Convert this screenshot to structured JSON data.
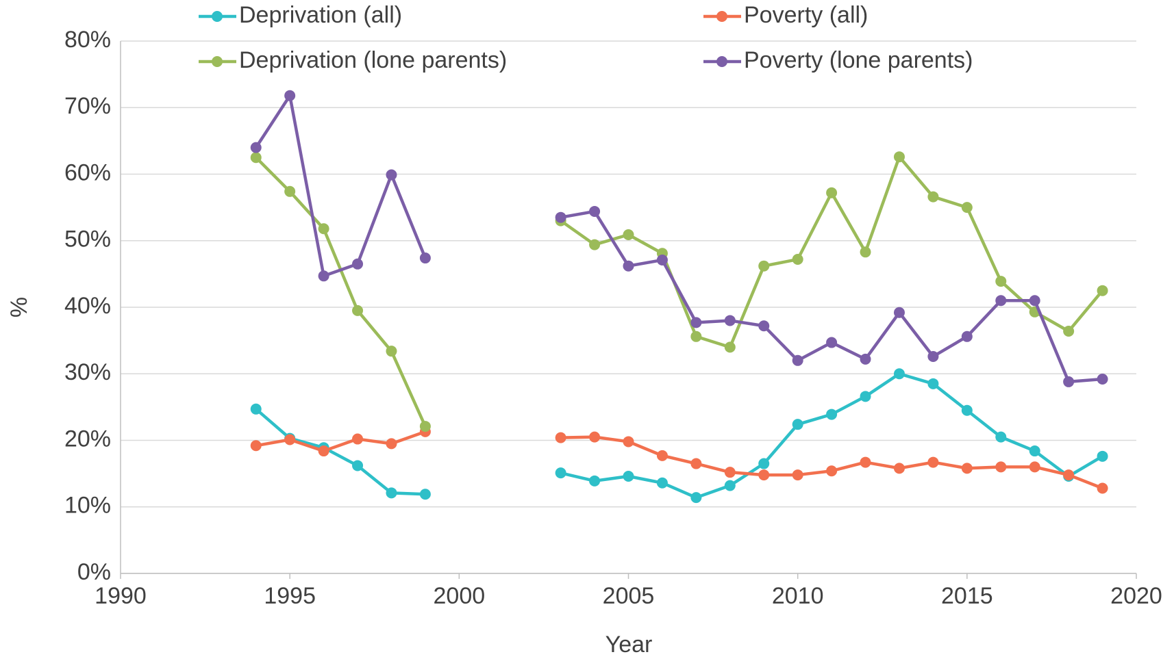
{
  "chart_data": {
    "type": "line",
    "xlabel": "Year",
    "ylabel": "%",
    "x": [
      1994,
      1995,
      1996,
      1997,
      1998,
      1999,
      2000,
      2001,
      2002,
      2003,
      2004,
      2005,
      2006,
      2007,
      2008,
      2009,
      2010,
      2011,
      2012,
      2013,
      2014,
      2015,
      2016,
      2017,
      2018,
      2019
    ],
    "series": [
      {
        "name": "Deprivation (all)",
        "color": "#2ebfc8",
        "values": [
          24.7,
          20.3,
          18.9,
          16.2,
          12.1,
          11.9,
          null,
          null,
          null,
          15.1,
          13.9,
          14.6,
          13.6,
          11.4,
          13.2,
          16.5,
          22.4,
          23.9,
          26.6,
          30.0,
          28.5,
          24.5,
          20.5,
          18.4,
          14.6,
          17.6
        ]
      },
      {
        "name": "Poverty (all)",
        "color": "#f2704e",
        "values": [
          19.2,
          20.1,
          18.4,
          20.2,
          19.5,
          21.3,
          null,
          null,
          null,
          20.4,
          20.5,
          19.8,
          17.7,
          16.5,
          15.2,
          14.8,
          14.8,
          15.4,
          16.7,
          15.8,
          16.7,
          15.8,
          16.0,
          16.0,
          14.8,
          12.8
        ]
      },
      {
        "name": "Deprivation (lone parents)",
        "color": "#9bbb59",
        "values": [
          62.5,
          57.4,
          51.8,
          39.5,
          33.4,
          22.1,
          null,
          null,
          null,
          53.0,
          49.4,
          50.9,
          48.1,
          35.6,
          34.0,
          46.2,
          47.2,
          57.2,
          48.3,
          62.6,
          56.6,
          55.0,
          43.9,
          39.3,
          36.4,
          42.5
        ]
      },
      {
        "name": "Poverty (lone parents)",
        "color": "#7b5ea7",
        "values": [
          64.0,
          71.8,
          44.7,
          46.5,
          59.9,
          47.4,
          null,
          null,
          null,
          53.5,
          54.4,
          46.2,
          47.1,
          37.7,
          38.0,
          37.2,
          32.0,
          34.7,
          32.2,
          39.2,
          32.6,
          35.6,
          41.0,
          41.0,
          28.8,
          29.2
        ]
      }
    ],
    "xlim": [
      1990,
      2020
    ],
    "xticks": [
      1990,
      1995,
      2000,
      2005,
      2010,
      2015,
      2020
    ],
    "ylim": [
      0,
      80
    ],
    "yticks": [
      {
        "value": 0,
        "label": "0%"
      },
      {
        "value": 10,
        "label": "10%"
      },
      {
        "value": 20,
        "label": "20%"
      },
      {
        "value": 30,
        "label": "30%"
      },
      {
        "value": 40,
        "label": "40%"
      },
      {
        "value": 50,
        "label": "50%"
      },
      {
        "value": 60,
        "label": "60%"
      },
      {
        "value": 70,
        "label": "70%"
      },
      {
        "value": 80,
        "label": "80%"
      }
    ],
    "grid": true,
    "legend": "top"
  }
}
